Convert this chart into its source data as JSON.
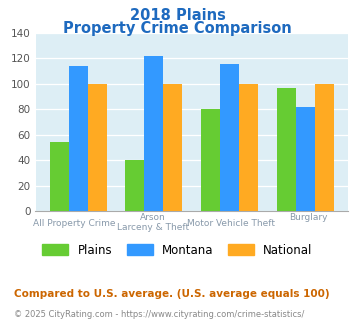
{
  "title_line1": "2018 Plains",
  "title_line2": "Property Crime Comparison",
  "title_color": "#1e6abf",
  "cat_labels_line1": [
    "All Property Crime",
    "Arson",
    "Motor Vehicle Theft",
    "Burglary"
  ],
  "cat_labels_line2": [
    "",
    "Larceny & Theft",
    "",
    ""
  ],
  "plains_values": [
    54,
    40,
    80,
    97
  ],
  "montana_values": [
    114,
    122,
    116,
    82
  ],
  "national_values": [
    100,
    100,
    100,
    100
  ],
  "plains_color": "#66cc33",
  "montana_color": "#3399ff",
  "national_color": "#ffaa22",
  "ylim": [
    0,
    140
  ],
  "yticks": [
    0,
    20,
    40,
    60,
    80,
    100,
    120,
    140
  ],
  "plot_bg_color": "#ddeef5",
  "legend_labels": [
    "Plains",
    "Montana",
    "National"
  ],
  "footnote1": "Compared to U.S. average. (U.S. average equals 100)",
  "footnote2": "© 2025 CityRating.com - https://www.cityrating.com/crime-statistics/",
  "footnote1_color": "#cc6600",
  "footnote2_color": "#888888",
  "label_color": "#8899aa"
}
